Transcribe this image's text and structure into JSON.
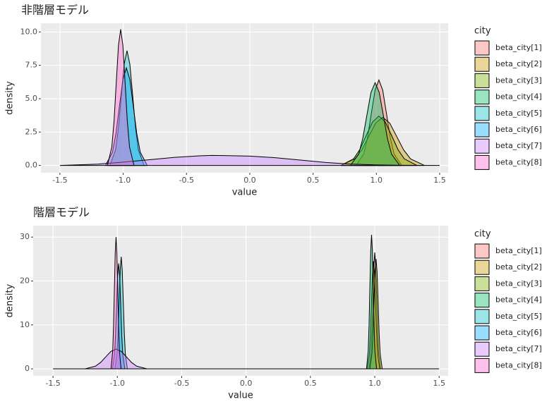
{
  "chart_data": [
    {
      "type": "area",
      "title": "非階層モデル",
      "x_label": "value",
      "y_label": "density",
      "legend_title": "city",
      "xlim": [
        -1.65,
        1.567
      ],
      "ylim": [
        -0.55,
        10.65
      ],
      "xticks": [
        {
          "value": -1.5,
          "label": "-1.5"
        },
        {
          "value": -1,
          "label": "-1.0"
        },
        -0.5,
        {
          "value": 0,
          "label": "0.0"
        },
        0.5,
        {
          "value": 1,
          "label": "1.0"
        },
        1.5
      ],
      "yticks": [
        {
          "value": 0,
          "label": "0.0"
        },
        2.5,
        {
          "value": 5,
          "label": "5.0"
        },
        7.5,
        {
          "value": 10,
          "label": "10.0"
        }
      ],
      "series": [
        {
          "name": "beta_city[1]",
          "color": "#F8766D",
          "x": [
            0.84,
            0.9,
            0.93,
            0.96,
            0.99,
            1.02,
            1.05,
            1.08,
            1.11,
            1.14,
            1.2
          ],
          "values": [
            0,
            0.86,
            2.08,
            3.88,
            5.65,
            6.4,
            5.65,
            3.88,
            2.08,
            0.86,
            0
          ]
        },
        {
          "name": "beta_city[2]",
          "color": "#CD9600",
          "x": [
            0.72,
            0.83,
            0.885,
            0.94,
            0.995,
            1.05,
            1.105,
            1.16,
            1.215,
            1.27,
            1.38
          ],
          "values": [
            0,
            0.49,
            1.17,
            2.18,
            3.18,
            3.6,
            3.18,
            2.18,
            1.17,
            0.49,
            0
          ]
        },
        {
          "name": "beta_city[3]",
          "color": "#7CAE00",
          "x": [
            0.72,
            0.82,
            0.87,
            0.92,
            0.97,
            1.02,
            1.07,
            1.12,
            1.17,
            1.22,
            1.32
          ],
          "values": [
            0,
            0.5,
            1.2,
            2.25,
            3.26,
            3.7,
            3.26,
            2.25,
            1.2,
            0.5,
            0
          ]
        },
        {
          "name": "beta_city[4]",
          "color": "#00BE67",
          "x": [
            0.795,
            0.86,
            0.8925,
            0.925,
            0.9575,
            0.99,
            1.0225,
            1.055,
            1.0875,
            1.12,
            1.185
          ],
          "values": [
            0,
            0.84,
            2.02,
            3.76,
            5.47,
            6.2,
            5.47,
            3.76,
            2.02,
            0.84,
            0
          ]
        },
        {
          "name": "beta_city[5]",
          "color": "#00BFC4",
          "x": [
            -1.105,
            -1.06,
            -1.0375,
            -1.015,
            -0.9925,
            -0.97,
            -0.9475,
            -0.925,
            -0.9025,
            -0.88,
            -0.835
          ],
          "values": [
            0,
            1.16,
            2.8,
            5.22,
            7.59,
            8.6,
            7.59,
            5.22,
            2.8,
            1.16,
            0
          ]
        },
        {
          "name": "beta_city[6]",
          "color": "#00A9FF",
          "x": [
            -1.14,
            -1.085,
            -1.0575,
            -1.03,
            -1.0025,
            -0.975,
            -0.9475,
            -0.92,
            -0.8925,
            -0.865,
            -0.81
          ],
          "values": [
            0,
            0.99,
            2.37,
            4.43,
            6.44,
            7.3,
            6.44,
            4.43,
            2.37,
            0.99,
            0
          ]
        },
        {
          "name": "beta_city[7]",
          "color": "#C77CFF",
          "x": [
            -1.5,
            -1.2,
            -1.0,
            -0.8,
            -0.6,
            -0.4,
            -0.3,
            -0.2,
            0,
            0.2,
            0.4,
            0.6,
            0.8,
            1.0,
            1.2,
            1.5
          ],
          "values": [
            0,
            0.1,
            0.25,
            0.42,
            0.6,
            0.72,
            0.75,
            0.74,
            0.7,
            0.58,
            0.4,
            0.22,
            0.1,
            0.04,
            0.01,
            0
          ]
        },
        {
          "name": "beta_city[8]",
          "color": "#FF61CC",
          "x": [
            -1.125,
            -1.09,
            -1.0725,
            -1.055,
            -1.0375,
            -1.02,
            -1.0025,
            -0.985,
            -0.9675,
            -0.95,
            -0.915
          ],
          "values": [
            0,
            1.38,
            3.31,
            6.19,
            9.0,
            10.2,
            9.0,
            6.19,
            3.31,
            1.38,
            0
          ]
        }
      ]
    },
    {
      "type": "area",
      "title": "階層モデル",
      "x_label": "value",
      "y_label": "density",
      "legend_title": "city",
      "xlim": [
        -1.654,
        1.57
      ],
      "ylim": [
        -1.6,
        32.6
      ],
      "xticks": [
        {
          "value": -1.5,
          "label": "-1.5"
        },
        {
          "value": -1,
          "label": "-1.0"
        },
        -0.5,
        {
          "value": 0,
          "label": "0.0"
        },
        0.5,
        {
          "value": 1,
          "label": "1.0"
        },
        1.5
      ],
      "yticks": [
        0,
        10,
        20,
        30
      ],
      "series": [
        {
          "name": "beta_city[1]",
          "color": "#F8766D",
          "x": [
            0.955,
            0.97,
            0.9775,
            0.985,
            0.9925,
            1.0,
            1.0075,
            1.015,
            1.0225,
            1.03,
            1.045
          ],
          "values": [
            0,
            3.58,
            8.61,
            16.09,
            23.37,
            26.5,
            23.37,
            16.09,
            8.61,
            3.58,
            0
          ]
        },
        {
          "name": "beta_city[2]",
          "color": "#CD9600",
          "x": [
            0.942,
            0.958,
            0.966,
            0.974,
            0.982,
            0.99,
            0.998,
            1.006,
            1.014,
            1.022,
            1.038
          ],
          "values": [
            0,
            3.31,
            7.96,
            14.87,
            21.61,
            24.5,
            21.61,
            14.87,
            7.96,
            3.31,
            0
          ]
        },
        {
          "name": "beta_city[3]",
          "color": "#7CAE00",
          "x": [
            0.962,
            0.978,
            0.986,
            0.994,
            1.002,
            1.01,
            1.018,
            1.026,
            1.034,
            1.042,
            1.058
          ],
          "values": [
            0,
            3.38,
            8.13,
            15.18,
            22.05,
            25,
            22.05,
            15.18,
            8.13,
            3.38,
            0
          ]
        },
        {
          "name": "beta_city[4]",
          "color": "#00BE67",
          "x": [
            0.936,
            0.949,
            0.9555,
            0.962,
            0.9685,
            0.975,
            0.9815,
            0.988,
            0.9945,
            1.001,
            1.014
          ],
          "values": [
            0,
            4.12,
            9.91,
            18.51,
            26.9,
            30.5,
            26.9,
            18.51,
            9.91,
            4.12,
            0
          ]
        },
        {
          "name": "beta_city[5]",
          "color": "#00BFC4",
          "x": [
            -1.018,
            -1.002,
            -0.994,
            -0.986,
            -0.978,
            -0.97,
            -0.962,
            -0.954,
            -0.946,
            -0.938,
            -0.922
          ],
          "values": [
            0,
            3.44,
            8.29,
            15.48,
            22.49,
            25.5,
            22.49,
            15.48,
            8.29,
            3.44,
            0
          ]
        },
        {
          "name": "beta_city[6]",
          "color": "#00A9FF",
          "x": [
            -1.038,
            -1.022,
            -1.014,
            -1.006,
            -0.998,
            -0.99,
            -0.982,
            -0.974,
            -0.966,
            -0.958,
            -0.942
          ],
          "values": [
            0,
            3.24,
            7.8,
            14.57,
            21.17,
            24,
            21.17,
            14.57,
            7.8,
            3.24,
            0
          ]
        },
        {
          "name": "beta_city[7]",
          "color": "#C77CFF",
          "x": [
            -1.5,
            -1.25,
            -1.17,
            -1.13,
            -1.09,
            -1.05,
            -1.01,
            -0.97,
            -0.93,
            -0.89,
            -0.85,
            -0.77,
            1.5
          ],
          "values": [
            0,
            0,
            0.61,
            1.46,
            2.73,
            3.97,
            4.5,
            3.97,
            2.73,
            1.46,
            0.61,
            0,
            0
          ]
        },
        {
          "name": "beta_city[8]",
          "color": "#FF61CC",
          "x": [
            -1.049,
            -1.036,
            -1.0295,
            -1.023,
            -1.0165,
            -1.01,
            -1.0035,
            -0.997,
            -0.9905,
            -0.984,
            -0.971
          ],
          "values": [
            0,
            4.05,
            9.75,
            18.21,
            26.46,
            30,
            26.46,
            18.21,
            9.75,
            4.05,
            0
          ]
        }
      ]
    }
  ]
}
